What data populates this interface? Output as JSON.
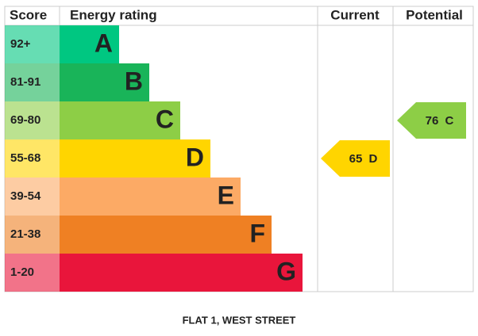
{
  "header": {
    "score": "Score",
    "rating": "Energy rating",
    "current": "Current",
    "potential": "Potential"
  },
  "bands": [
    {
      "score": "92+",
      "letter": "A",
      "color": "#00c781"
    },
    {
      "score": "81-91",
      "letter": "B",
      "color": "#19b459"
    },
    {
      "score": "69-80",
      "letter": "C",
      "color": "#8dce46"
    },
    {
      "score": "55-68",
      "letter": "D",
      "color": "#ffd500"
    },
    {
      "score": "39-54",
      "letter": "E",
      "color": "#fcaa65"
    },
    {
      "score": "21-38",
      "letter": "F",
      "color": "#ef8023"
    },
    {
      "score": "1-20",
      "letter": "G",
      "color": "#e9153b"
    }
  ],
  "current": {
    "value": 65,
    "letter": "D"
  },
  "potential": {
    "value": 76,
    "letter": "C"
  },
  "footer": "FLAT 1, WEST STREET"
}
